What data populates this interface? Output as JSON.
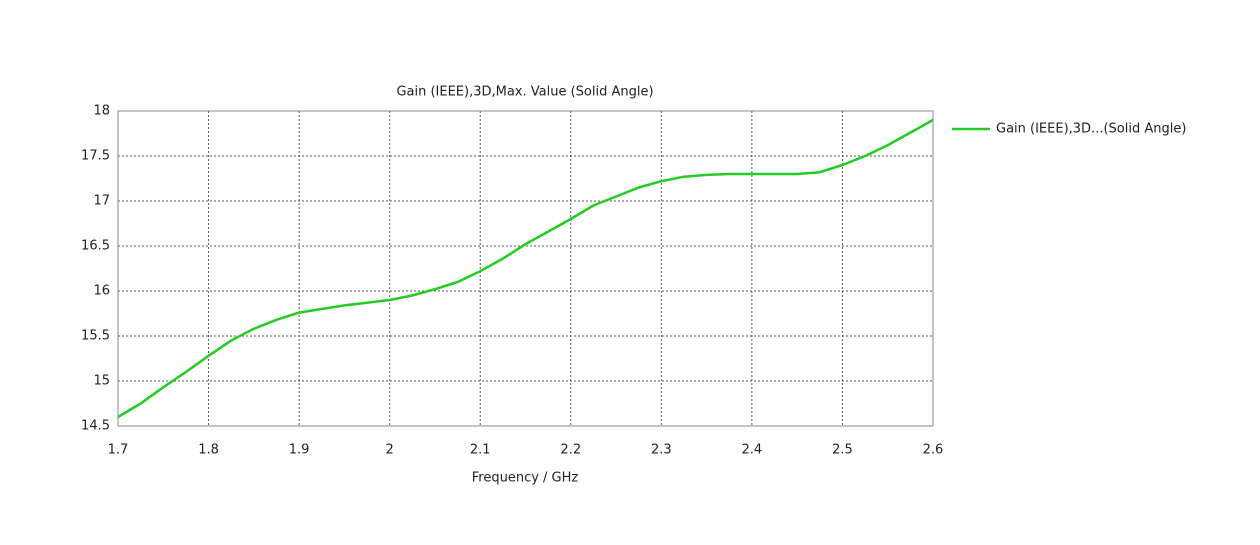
{
  "chart_data": {
    "type": "line",
    "title": "Gain (IEEE),3D,Max. Value (Solid Angle)",
    "x_label": "Frequency / GHz",
    "x": [
      1.7,
      1.725,
      1.75,
      1.775,
      1.8,
      1.825,
      1.85,
      1.875,
      1.9,
      1.925,
      1.95,
      1.975,
      2.0,
      2.025,
      2.05,
      2.075,
      2.1,
      2.125,
      2.15,
      2.175,
      2.2,
      2.225,
      2.25,
      2.275,
      2.3,
      2.325,
      2.35,
      2.375,
      2.4,
      2.425,
      2.45,
      2.475,
      2.5,
      2.525,
      2.55,
      2.575,
      2.6
    ],
    "series": [
      {
        "name": "Gain (IEEE),3D...(Solid Angle)",
        "color": "#22cc22",
        "values": [
          14.6,
          14.75,
          14.93,
          15.1,
          15.28,
          15.45,
          15.58,
          15.68,
          15.76,
          15.8,
          15.84,
          15.87,
          15.9,
          15.95,
          16.02,
          16.1,
          16.22,
          16.36,
          16.52,
          16.66,
          16.8,
          16.95,
          17.05,
          17.15,
          17.22,
          17.27,
          17.29,
          17.3,
          17.3,
          17.3,
          17.3,
          17.32,
          17.4,
          17.5,
          17.62,
          17.76,
          17.9
        ]
      }
    ],
    "xlim": [
      1.7,
      2.6
    ],
    "xticks": [
      1.7,
      1.8,
      1.9,
      2,
      2.1,
      2.2,
      2.3,
      2.4,
      2.5,
      2.6
    ],
    "ylim": [
      14.5,
      18
    ],
    "yticks": [
      14.5,
      15,
      15.5,
      16,
      16.5,
      17,
      17.5,
      18
    ],
    "grid": true,
    "legend": "right"
  }
}
